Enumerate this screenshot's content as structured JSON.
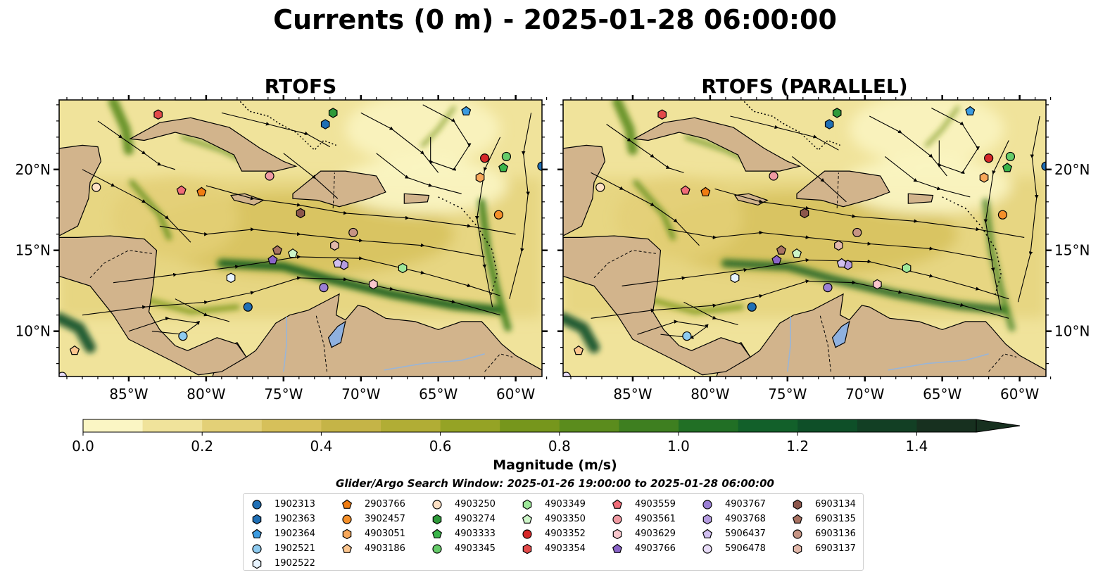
{
  "title": "Currents (0 m) - 2025-01-28 06:00:00",
  "panels": [
    {
      "title": "RTOFS"
    },
    {
      "title": "RTOFS (PARALLEL)"
    }
  ],
  "axes": {
    "lon_ticks": [
      "85°W",
      "80°W",
      "75°W",
      "70°W",
      "65°W",
      "60°W"
    ],
    "lat_ticks": [
      "20°N",
      "15°N",
      "10°N"
    ],
    "lon_range": [
      -89.5,
      -58.3
    ],
    "lat_range": [
      7.2,
      24.3
    ]
  },
  "colorbar": {
    "label": "Magnitude (m/s)",
    "ticks": [
      "0.0",
      "0.2",
      "0.4",
      "0.6",
      "0.8",
      "1.0",
      "1.2",
      "1.4"
    ],
    "range": [
      0.0,
      1.5
    ],
    "extend": "max",
    "colors": [
      "#fbf6c4",
      "#f0e39b",
      "#e3d077",
      "#d6c05a",
      "#c5b447",
      "#b1ad35",
      "#95a325",
      "#76961c",
      "#5b8c1d",
      "#3e7f20",
      "#216f25",
      "#12602a",
      "#0e4f28",
      "#123f24",
      "#17301f"
    ]
  },
  "search_window": "Glider/Argo Search Window: 2025-01-26 19:00:00 to 2025-01-28 06:00:00",
  "land_color": "#d2b48c",
  "legend": [
    {
      "id": "1902313",
      "marker": "circle",
      "color": "#1f6fb5"
    },
    {
      "id": "1902363",
      "marker": "hexagon",
      "color": "#1f6fb5"
    },
    {
      "id": "1902364",
      "marker": "pentagon",
      "color": "#3c9be0"
    },
    {
      "id": "1902521",
      "marker": "circle",
      "color": "#8ecbf0"
    },
    {
      "id": "1902522",
      "marker": "hexagon",
      "color": "#e8f4ff"
    },
    {
      "id": "2903766",
      "marker": "pentagon",
      "color": "#f07c12"
    },
    {
      "id": "3902457",
      "marker": "circle",
      "color": "#f5902a"
    },
    {
      "id": "4903051",
      "marker": "hexagon",
      "color": "#f8a85a"
    },
    {
      "id": "4903186",
      "marker": "pentagon",
      "color": "#fbc58e"
    },
    {
      "id": "4903250",
      "marker": "circle",
      "color": "#fde0c4"
    },
    {
      "id": "4903274",
      "marker": "hexagon",
      "color": "#2e9a3a"
    },
    {
      "id": "4903333",
      "marker": "pentagon",
      "color": "#3ab54a"
    },
    {
      "id": "4903345",
      "marker": "circle",
      "color": "#66cc6a"
    },
    {
      "id": "4903349",
      "marker": "hexagon",
      "color": "#9ee89a"
    },
    {
      "id": "4903350",
      "marker": "pentagon",
      "color": "#cdf5c8"
    },
    {
      "id": "4903352",
      "marker": "circle",
      "color": "#d62728"
    },
    {
      "id": "4903354",
      "marker": "hexagon",
      "color": "#e34a4a"
    },
    {
      "id": "4903559",
      "marker": "pentagon",
      "color": "#f06c78"
    },
    {
      "id": "4903561",
      "marker": "circle",
      "color": "#f09aa2"
    },
    {
      "id": "4903629",
      "marker": "hexagon",
      "color": "#f9c6cc"
    },
    {
      "id": "4903766",
      "marker": "pentagon",
      "color": "#8a64c8"
    },
    {
      "id": "4903767",
      "marker": "circle",
      "color": "#9b7fd4"
    },
    {
      "id": "4903768",
      "marker": "hexagon",
      "color": "#b59ce0"
    },
    {
      "id": "5906437",
      "marker": "pentagon",
      "color": "#d1bff0"
    },
    {
      "id": "5906478",
      "marker": "circle",
      "color": "#e8dcf8"
    },
    {
      "id": "6903134",
      "marker": "hexagon",
      "color": "#8c564b"
    },
    {
      "id": "6903135",
      "marker": "pentagon",
      "color": "#a87262"
    },
    {
      "id": "6903136",
      "marker": "circle",
      "color": "#c69484"
    },
    {
      "id": "6903137",
      "marker": "hexagon",
      "color": "#e2b8aa"
    }
  ],
  "platform_positions": [
    {
      "id": "1902313",
      "lon": -58.3,
      "lat": 20.2
    },
    {
      "id": "1902363",
      "lon": -72.3,
      "lat": 22.8
    },
    {
      "id": "1902364",
      "lon": -63.2,
      "lat": 23.6
    },
    {
      "id": "1902521",
      "lon": -81.5,
      "lat": 9.7
    },
    {
      "id": "1902522",
      "lon": -78.4,
      "lat": 13.3
    },
    {
      "id": "2903766",
      "lon": -80.3,
      "lat": 18.6
    },
    {
      "id": "3902457",
      "lon": -61.1,
      "lat": 17.2
    },
    {
      "id": "4903051",
      "lon": -62.3,
      "lat": 19.5
    },
    {
      "id": "4903186",
      "lon": -88.5,
      "lat": 8.8
    },
    {
      "id": "4903250",
      "lon": -87.1,
      "lat": 18.9
    },
    {
      "id": "4903274",
      "lon": -71.8,
      "lat": 23.5
    },
    {
      "id": "4903333",
      "lon": -60.8,
      "lat": 20.1
    },
    {
      "id": "4903345",
      "lon": -60.6,
      "lat": 20.8
    },
    {
      "id": "4903349",
      "lon": -67.3,
      "lat": 13.9
    },
    {
      "id": "4903350",
      "lon": -74.4,
      "lat": 14.8
    },
    {
      "id": "4903352",
      "lon": -62.0,
      "lat": 20.7
    },
    {
      "id": "4903354",
      "lon": -83.1,
      "lat": 23.4
    },
    {
      "id": "4903559",
      "lon": -81.6,
      "lat": 18.7
    },
    {
      "id": "4903561",
      "lon": -75.9,
      "lat": 19.6
    },
    {
      "id": "4903629",
      "lon": -69.2,
      "lat": 12.9
    },
    {
      "id": "4903766",
      "lon": -75.7,
      "lat": 14.4
    },
    {
      "id": "4903767",
      "lon": -72.4,
      "lat": 12.7
    },
    {
      "id": "4903768",
      "lon": -71.1,
      "lat": 14.1
    },
    {
      "id": "5906437",
      "lon": -71.5,
      "lat": 14.2
    },
    {
      "id": "5906478",
      "lon": -89.3,
      "lat": 7.2
    },
    {
      "id": "6903134",
      "lon": -73.9,
      "lat": 17.3
    },
    {
      "id": "6903135",
      "lon": -75.4,
      "lat": 15.0
    },
    {
      "id": "6903136",
      "lon": -70.5,
      "lat": 16.1
    },
    {
      "id": "6903137",
      "lon": -71.7,
      "lat": 15.3
    },
    {
      "id": "1902313b",
      "lon": -77.3,
      "lat": 11.5
    }
  ]
}
